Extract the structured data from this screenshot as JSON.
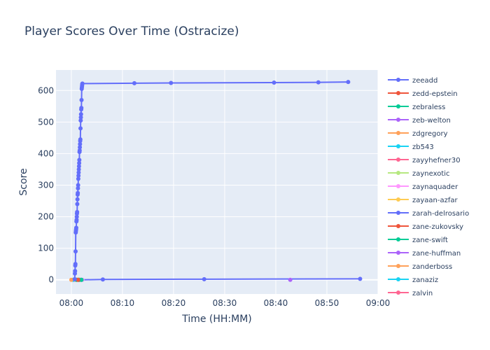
{
  "chart_data": {
    "type": "line",
    "title": "Player Scores Over Time (Ostracize)",
    "xlabel": "Time (HH:MM)",
    "ylabel": "Score",
    "xlim": [
      "07:57",
      "09:00"
    ],
    "ylim": [
      -45,
      665
    ],
    "x_ticks": [
      "08:00",
      "08:10",
      "08:20",
      "08:30",
      "08:40",
      "08:50",
      "09:00"
    ],
    "y_ticks": [
      0,
      100,
      200,
      300,
      400,
      500,
      600
    ],
    "grid": true,
    "legend": "right",
    "series": [
      {
        "name": "zeeadd",
        "color": "#636efa",
        "x": [
          "08:00:40",
          "08:00:42",
          "08:00:44",
          "08:00:46",
          "08:00:48",
          "08:00:50",
          "08:00:52",
          "08:00:54",
          "08:00:56",
          "08:00:58",
          "08:01:00",
          "08:01:02",
          "08:01:04",
          "08:01:06",
          "08:01:08",
          "08:01:10",
          "08:01:12",
          "08:01:14",
          "08:01:16",
          "08:01:18",
          "08:01:20",
          "08:01:22",
          "08:01:24",
          "08:01:26",
          "08:01:28",
          "08:01:30",
          "08:01:32",
          "08:01:34",
          "08:01:36",
          "08:01:38",
          "08:01:40",
          "08:01:42",
          "08:01:44",
          "08:01:46",
          "08:01:48",
          "08:01:50",
          "08:01:52",
          "08:01:54",
          "08:01:56",
          "08:01:58",
          "08:02:00",
          "08:02:02",
          "08:02:04",
          "08:02:06",
          "08:02:08",
          "08:02:10",
          "08:12:20",
          "08:19:30",
          "08:39:40",
          "08:48:20",
          "08:54:10"
        ],
        "y": [
          2,
          20,
          28,
          45,
          50,
          90,
          150,
          155,
          160,
          165,
          185,
          190,
          200,
          210,
          215,
          240,
          255,
          270,
          275,
          290,
          300,
          320,
          330,
          340,
          350,
          360,
          370,
          380,
          405,
          410,
          420,
          430,
          440,
          445,
          480,
          505,
          515,
          525,
          540,
          545,
          570,
          605,
          610,
          615,
          620,
          622,
          623,
          624,
          625,
          626,
          627
        ]
      },
      {
        "name": "zedd-epstein",
        "color": "#ef553b",
        "x": [
          "08:01:20"
        ],
        "y": [
          0
        ]
      },
      {
        "name": "zebraless",
        "color": "#00cc96",
        "x": [
          "08:01:00",
          "08:01:30",
          "08:02:00"
        ],
        "y": [
          0,
          0,
          0
        ]
      },
      {
        "name": "zeb-welton",
        "color": "#ab63fa",
        "x": [
          "08:42:50"
        ],
        "y": [
          0
        ]
      },
      {
        "name": "zdgregory",
        "color": "#ffa15a",
        "x": [
          "08:00:00"
        ],
        "y": [
          0
        ]
      },
      {
        "name": "zb543",
        "color": "#19d3f3",
        "x": [
          "08:00:20"
        ],
        "y": [
          0
        ]
      },
      {
        "name": "zayyhefner30",
        "color": "#ff6692",
        "x": [
          "08:01:50"
        ],
        "y": [
          0
        ]
      },
      {
        "name": "zaynexotic",
        "color": "#b6e880",
        "x": [
          "08:01:40"
        ],
        "y": [
          0
        ]
      },
      {
        "name": "zaynaquader",
        "color": "#ff97ff",
        "x": [
          "08:02:10"
        ],
        "y": [
          0
        ]
      },
      {
        "name": "zayaan-azfar",
        "color": "#fecb52",
        "x": [
          "08:00:50"
        ],
        "y": [
          0
        ]
      },
      {
        "name": "zarah-delrosario",
        "color": "#636efa",
        "x": [
          "08:02:00",
          "08:06:10",
          "08:26:00",
          "08:56:30"
        ],
        "y": [
          0,
          1,
          2,
          3
        ]
      },
      {
        "name": "zane-zukovsky",
        "color": "#ef553b",
        "x": [
          "08:01:10"
        ],
        "y": [
          0
        ]
      },
      {
        "name": "zane-swift",
        "color": "#00cc96",
        "x": [
          "08:01:30"
        ],
        "y": [
          0
        ]
      },
      {
        "name": "zane-huffman",
        "color": "#ab63fa",
        "x": [
          "08:00:30"
        ],
        "y": [
          0
        ]
      },
      {
        "name": "zanderboss",
        "color": "#ffa15a",
        "x": [
          "08:01:00"
        ],
        "y": [
          0
        ]
      },
      {
        "name": "zanaziz",
        "color": "#19d3f3",
        "x": [
          "08:01:40"
        ],
        "y": [
          0
        ]
      },
      {
        "name": "zalvin",
        "color": "#ff6692",
        "x": [
          "08:01:20"
        ],
        "y": [
          0
        ]
      }
    ]
  }
}
